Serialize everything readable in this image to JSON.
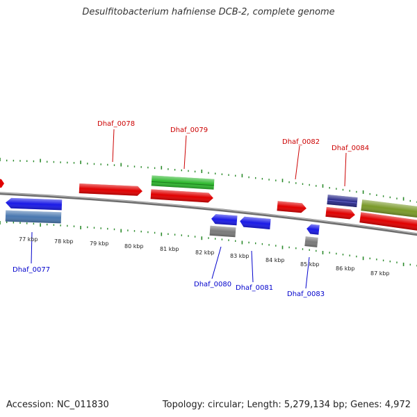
{
  "title": "Desulfitobacterium hafniense DCB-2, complete genome",
  "footer": {
    "accession": "Accession: NC_011830",
    "summary": "Topology: circular; Length: 5,279,134 bp; Genes: 4,972"
  },
  "colors": {
    "forward_label": "#cc0000",
    "reverse_label": "#0000cc",
    "tick": "#2a8a2a",
    "backbone": "#808080"
  },
  "kbp_labels": [
    "77 kbp",
    "78 kbp",
    "79 kbp",
    "80 kbp",
    "81 kbp",
    "82 kbp",
    "83 kbp",
    "84 kbp",
    "85 kbp",
    "86 kbp",
    "87 kbp"
  ],
  "gene_labels": {
    "top": [
      "Dhaf_0078",
      "Dhaf_0079",
      "Dhaf_0082",
      "Dhaf_0084"
    ],
    "bottom": [
      "Dhaf_0077",
      "Dhaf_0080",
      "Dhaf_0081",
      "Dhaf_0083"
    ]
  },
  "features": [
    {
      "name": "feature-red-left-edge",
      "color": "#e00000",
      "strand": "forward"
    },
    {
      "name": "feature-red-0078",
      "color": "#e00000",
      "strand": "forward"
    },
    {
      "name": "feature-green-0079",
      "color": "#2fb82f",
      "strand": "forward"
    },
    {
      "name": "feature-red-0079",
      "color": "#e00000",
      "strand": "forward"
    },
    {
      "name": "feature-red-0082",
      "color": "#e00000",
      "strand": "forward"
    },
    {
      "name": "feature-navy-0084",
      "color": "#2a2a8a",
      "strand": "forward"
    },
    {
      "name": "feature-red-0084",
      "color": "#e00000",
      "strand": "forward"
    },
    {
      "name": "feature-olive-right",
      "color": "#7a9a2a",
      "strand": "forward"
    },
    {
      "name": "feature-red-right",
      "color": "#e00000",
      "strand": "forward"
    },
    {
      "name": "feature-blue-0077",
      "color": "#1a1ae6",
      "strand": "reverse"
    },
    {
      "name": "feature-steelblue-0077",
      "color": "#4a78b0",
      "strand": "reverse"
    },
    {
      "name": "feature-blue-0080",
      "color": "#1a1ae6",
      "strand": "reverse"
    },
    {
      "name": "feature-gray-0080",
      "color": "#7a7a7a",
      "strand": "reverse"
    },
    {
      "name": "feature-blue-0081",
      "color": "#1a1ae6",
      "strand": "reverse"
    },
    {
      "name": "feature-blue-0083",
      "color": "#1a1ae6",
      "strand": "reverse"
    },
    {
      "name": "feature-gray-0083",
      "color": "#7a7a7a",
      "strand": "reverse"
    }
  ]
}
